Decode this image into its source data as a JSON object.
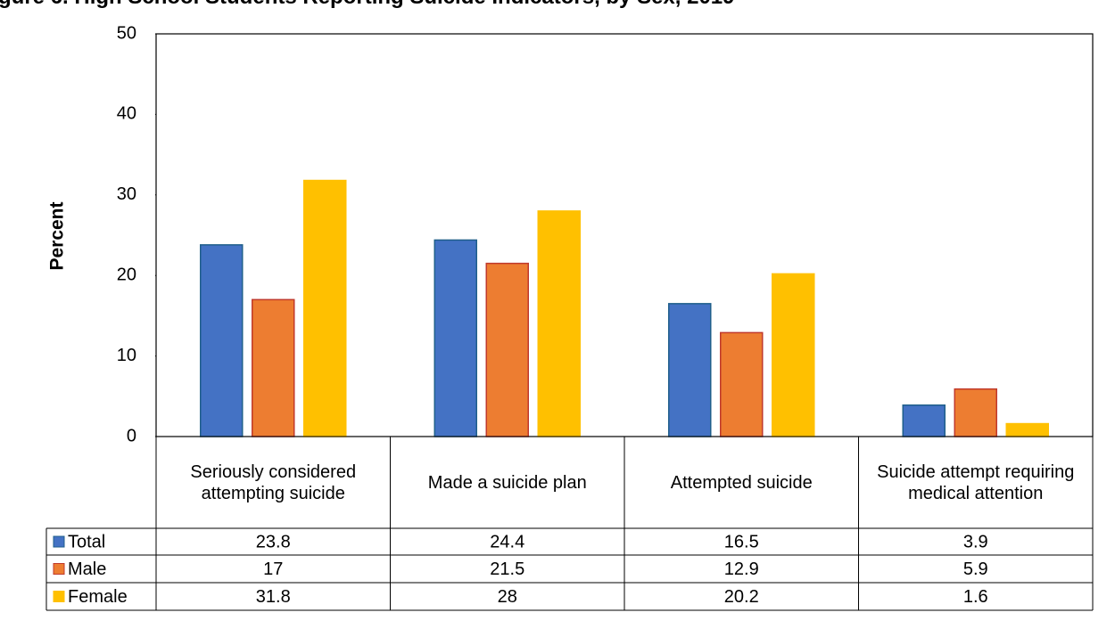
{
  "chart_data": {
    "type": "bar",
    "title": "gure 6. High School Students Reporting Suicide Indicators, by Sex, 2019",
    "y_label": "Percent",
    "categories": [
      "Seriously considered attempting suicide",
      "Made a suicide plan",
      "Attempted suicide",
      "Suicide attempt requiring medical attention"
    ],
    "series": [
      {
        "name": "Total",
        "color": "#4472c4",
        "values": [
          23.8,
          24.4,
          16.5,
          3.9
        ]
      },
      {
        "name": "Male",
        "color": "#ed7d31",
        "values": [
          17,
          21.5,
          12.9,
          5.9
        ]
      },
      {
        "name": "Female",
        "color": "#ffc000",
        "values": [
          31.8,
          28,
          20.2,
          1.6
        ]
      }
    ],
    "ylim": [
      0,
      50
    ],
    "yticks": [
      0,
      10,
      20,
      30,
      40,
      50
    ]
  }
}
